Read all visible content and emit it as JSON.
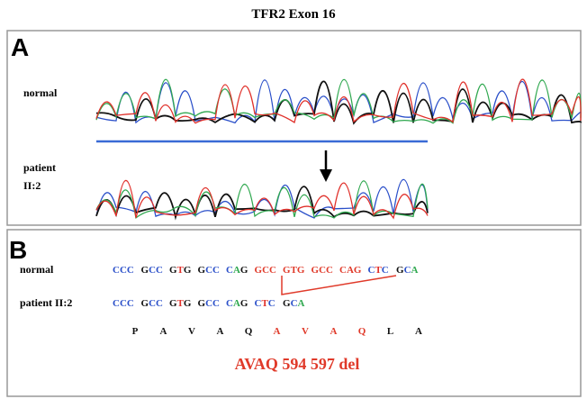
{
  "title": "TFR2 Exon 16",
  "panel_a": {
    "label": "A",
    "normal_label": "normal",
    "patient_label": [
      "patient",
      "II:2"
    ]
  },
  "panel_b": {
    "label": "B",
    "normal": {
      "label": "normal",
      "before": [
        "CCC",
        "GCC",
        "GTG",
        "GCC",
        "CAG"
      ],
      "deleted": [
        "GCC",
        "GTG",
        "GCC",
        "CAG"
      ],
      "after": [
        "CTC",
        "GCA"
      ]
    },
    "patient": {
      "label": "patient II:2",
      "codons": [
        "CCC",
        "GCC",
        "GTG",
        "GCC",
        "CAG",
        "CTC",
        "GCA"
      ]
    },
    "amino_acids": {
      "before": [
        "P",
        "A",
        "V",
        "A",
        "Q"
      ],
      "deleted": [
        "A",
        "V",
        "A",
        "Q"
      ],
      "after": [
        "L",
        "A"
      ]
    },
    "mutation": "AVAQ 594 597 del"
  }
}
